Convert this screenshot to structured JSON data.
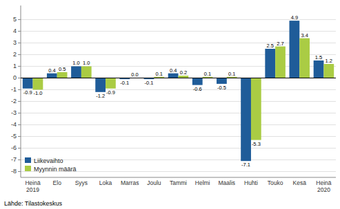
{
  "chart_data": {
    "type": "bar",
    "categories": [
      "Heinä\n2019",
      "Elo",
      "Syys",
      "Loka",
      "Marras",
      "Joulu",
      "Tammi",
      "Helmi",
      "Maalis",
      "Huhti",
      "Touko",
      "Kesä",
      "Heinä\n2020"
    ],
    "series": [
      {
        "name": "Liikevaihto",
        "color": "#1F5C99",
        "values": [
          -0.9,
          0.4,
          1.0,
          -1.2,
          -0.1,
          -0.1,
          0.4,
          -0.6,
          -0.5,
          -7.1,
          2.5,
          4.9,
          1.5
        ],
        "value_labels": [
          "-0.9",
          "0.4",
          "1.0",
          "-1.2",
          "-0.1",
          "-0.1",
          "0.4",
          "-0.6",
          "-0.5",
          "-7.1",
          "2.5",
          "4.9",
          "1.5"
        ]
      },
      {
        "name": "Myynnin määrä",
        "color": "#AACC44",
        "values": [
          -1.0,
          0.5,
          1.0,
          -0.9,
          0.0,
          0.1,
          0.2,
          0.1,
          0.1,
          -5.3,
          2.7,
          3.4,
          1.2
        ],
        "value_labels": [
          "-1.0",
          "0.5",
          "1.0",
          "-0.9",
          "0.0",
          "0.1",
          "0.2",
          "0.1",
          "0.1",
          "-5.3",
          "2.7",
          "3.4",
          "1.2"
        ]
      }
    ],
    "ylim": [
      -8.5,
      6.2
    ],
    "yticks": [
      -8,
      -7,
      -6,
      -5,
      -4,
      -3,
      -2,
      -1,
      0,
      1,
      2,
      3,
      4,
      5
    ],
    "grid": true,
    "legend": "lower left",
    "data_labels": true,
    "source": "Lähde: Tilastokeskus"
  }
}
